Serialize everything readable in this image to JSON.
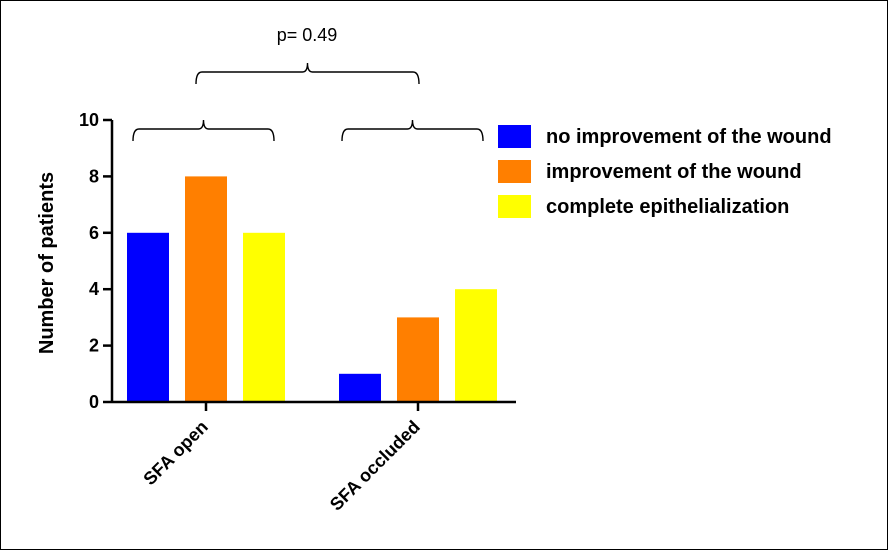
{
  "chart_data": {
    "type": "bar",
    "ylabel": "Number of patients",
    "ylim": [
      0,
      10
    ],
    "yticks": [
      0,
      2,
      4,
      6,
      8,
      10
    ],
    "categories": [
      "SFA open",
      "SFA occluded"
    ],
    "series": [
      {
        "name": "no improvement of the wound",
        "color": "#0000ff",
        "values": [
          6,
          1
        ]
      },
      {
        "name": "improvement of the wound",
        "color": "#ff7f00",
        "values": [
          8,
          3
        ]
      },
      {
        "name": "complete epithelialization",
        "color": "#ffff00",
        "values": [
          6,
          4
        ]
      }
    ],
    "annotations": [
      {
        "text": "p= 0.49"
      }
    ],
    "legend": "right",
    "grid": false
  }
}
